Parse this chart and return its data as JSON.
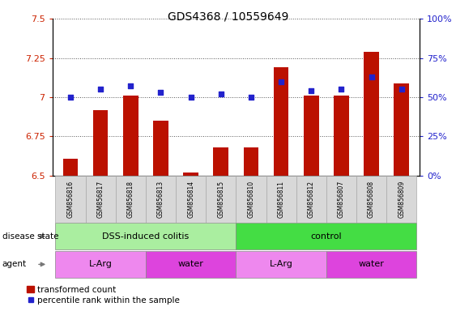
{
  "title": "GDS4368 / 10559649",
  "samples": [
    "GSM856816",
    "GSM856817",
    "GSM856818",
    "GSM856813",
    "GSM856814",
    "GSM856815",
    "GSM856810",
    "GSM856811",
    "GSM856812",
    "GSM856807",
    "GSM856808",
    "GSM856809"
  ],
  "bar_values": [
    6.61,
    6.92,
    7.01,
    6.85,
    6.52,
    6.68,
    6.68,
    7.19,
    7.01,
    7.01,
    7.29,
    7.09
  ],
  "dot_values": [
    50,
    55,
    57,
    53,
    50,
    52,
    50,
    60,
    54,
    55,
    63,
    55
  ],
  "ylim_left": [
    6.5,
    7.5
  ],
  "ylim_right": [
    0,
    100
  ],
  "yticks_left": [
    6.5,
    6.75,
    7.0,
    7.25,
    7.5
  ],
  "yticks_right": [
    0,
    25,
    50,
    75,
    100
  ],
  "ytick_labels_left": [
    "6.5",
    "6.75",
    "7",
    "7.25",
    "7.5"
  ],
  "ytick_labels_right": [
    "0%",
    "25%",
    "50%",
    "75%",
    "100%"
  ],
  "bar_color": "#bb1100",
  "dot_color": "#2222cc",
  "disease_state_groups": [
    {
      "label": "DSS-induced colitis",
      "start": 0,
      "end": 6,
      "color": "#aaeea0"
    },
    {
      "label": "control",
      "start": 6,
      "end": 12,
      "color": "#44dd44"
    }
  ],
  "agent_groups": [
    {
      "label": "L-Arg",
      "start": 0,
      "end": 3,
      "color": "#ee88ee"
    },
    {
      "label": "water",
      "start": 3,
      "end": 6,
      "color": "#dd44dd"
    },
    {
      "label": "L-Arg",
      "start": 6,
      "end": 9,
      "color": "#ee88ee"
    },
    {
      "label": "water",
      "start": 9,
      "end": 12,
      "color": "#dd44dd"
    }
  ],
  "legend_bar_label": "transformed count",
  "legend_dot_label": "percentile rank within the sample",
  "disease_state_label": "disease state",
  "agent_label": "agent",
  "grid_color": "#555555",
  "background_color": "#ffffff",
  "axis_bg": "#ffffff",
  "left_tick_color": "#cc2200",
  "right_tick_color": "#2222cc",
  "bar_width": 0.5
}
